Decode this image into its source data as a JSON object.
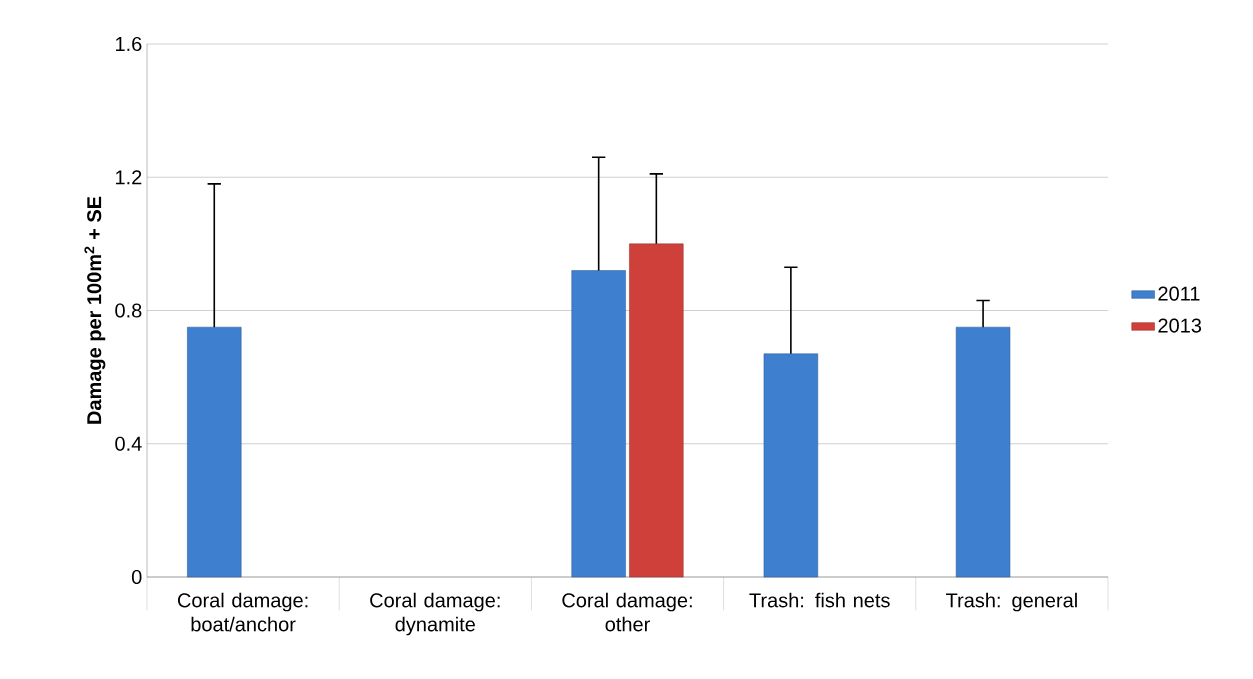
{
  "chart_data": {
    "type": "bar",
    "ylabel": "Damage per 100m$^{2}$ + SE",
    "categories": [
      "Coral damage: boat/anchor",
      "Coral damage: dynamite",
      "Coral damage: other",
      "Trash: fish nets",
      "Trash: general"
    ],
    "series": [
      {
        "name": "2011",
        "color": "#3f7fcf",
        "values": [
          0.75,
          null,
          0.92,
          0.67,
          0.75
        ],
        "errors": [
          [
            0.75,
            1.18
          ],
          null,
          [
            0.92,
            1.26
          ],
          [
            0.67,
            0.93
          ],
          [
            0.75,
            0.83
          ]
        ]
      },
      {
        "name": "2013",
        "color": "#d0403a",
        "values": [
          null,
          null,
          1.0,
          null,
          null
        ],
        "errors": [
          null,
          null,
          [
            1.0,
            1.21
          ],
          null,
          null
        ]
      }
    ],
    "ylim": [
      0,
      1.6
    ],
    "yticks": [
      0,
      0.4,
      0.8,
      1.2,
      1.6
    ],
    "grid": "y",
    "legend": "right"
  }
}
